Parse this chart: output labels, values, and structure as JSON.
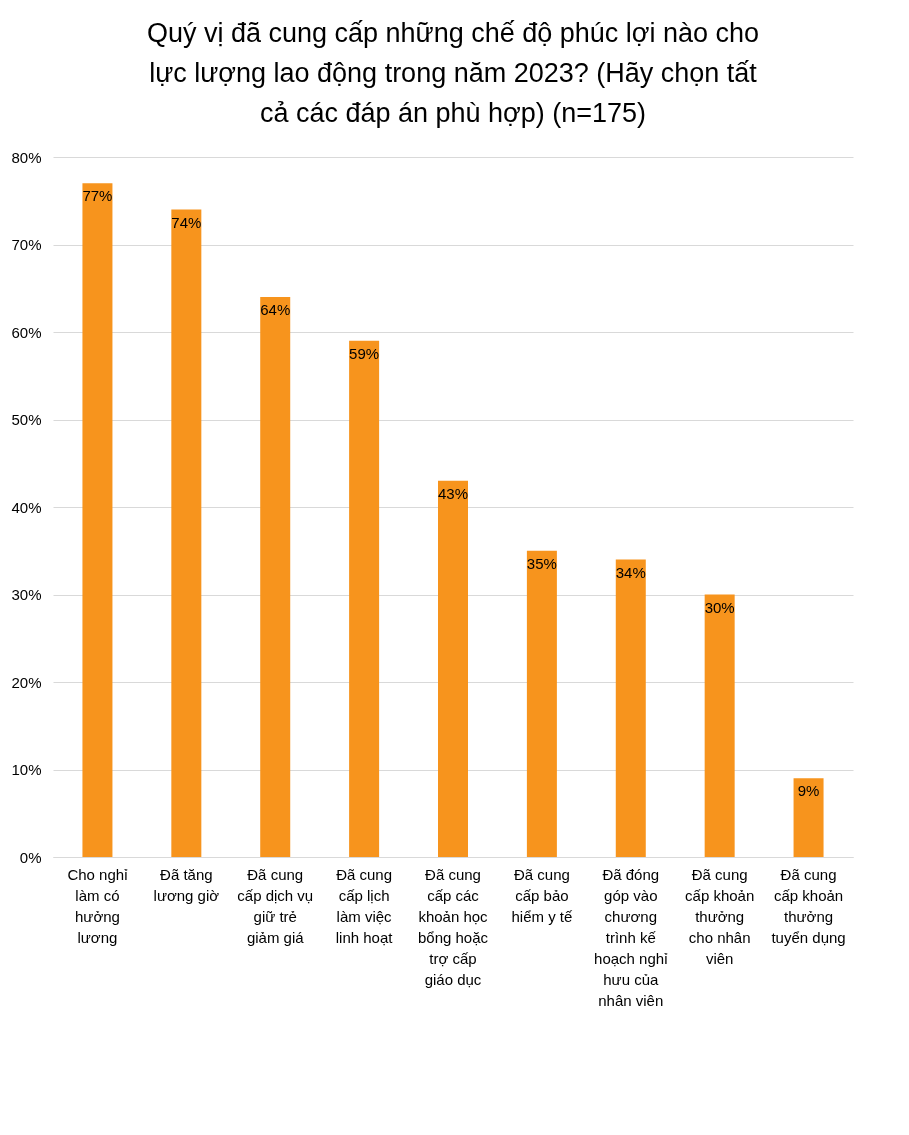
{
  "chart_data": {
    "type": "bar",
    "title": "Quý vị đã cung cấp những chế độ phúc lợi nào cho lực lượng lao động trong năm 2023? (Hãy chọn tất cả các đáp án phù hợp) (n=175)",
    "categories": [
      "Cho nghỉ làm có hưởng lương",
      "Đã tăng lương giờ",
      "Đã cung cấp dịch vụ giữ trẻ giảm giá",
      "Đã cung cấp lịch làm việc linh hoạt",
      "Đã cung cấp các khoản học bổng hoặc trợ cấp giáo dục",
      "Đã cung cấp bảo hiểm y tế",
      "Đã đóng góp vào chương trình kế hoạch nghỉ hưu của nhân viên",
      "Đã cung cấp khoản thưởng cho nhân viên",
      "Đã cung cấp khoản thưởng tuyển dụng"
    ],
    "values": [
      77,
      74,
      64,
      59,
      43,
      35,
      34,
      30,
      9
    ],
    "value_labels": [
      "77%",
      "74%",
      "64%",
      "59%",
      "43%",
      "35%",
      "34%",
      "30%",
      "9%"
    ],
    "color": "#f7941d",
    "ylim": [
      0,
      80
    ],
    "yticks": [
      {
        "value": 0,
        "label": "0%"
      },
      {
        "value": 10,
        "label": "10%"
      },
      {
        "value": 20,
        "label": "20%"
      },
      {
        "value": 30,
        "label": "30%"
      },
      {
        "value": 40,
        "label": "40%"
      },
      {
        "value": 50,
        "label": "50%"
      },
      {
        "value": 60,
        "label": "60%"
      },
      {
        "value": 70,
        "label": "70%"
      },
      {
        "value": 80,
        "label": "80%"
      }
    ],
    "grid": "y"
  }
}
